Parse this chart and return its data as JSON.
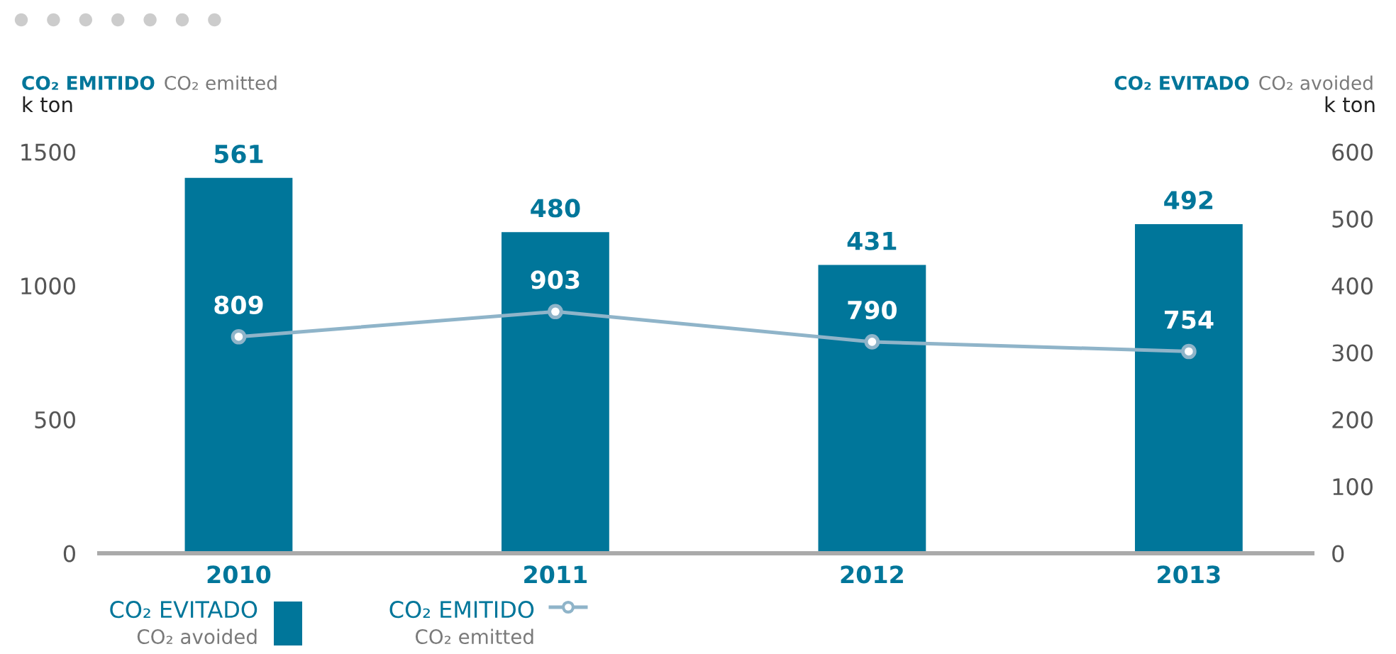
{
  "chart_data": {
    "type": "bar",
    "ylabel": "CO₂ EMITIDO\nCO₂ emitted\nk ton",
    "y2label": "CO₂ EVITADO\nCO₂ avoided\nk ton",
    "categories": [
      "2010",
      "2011",
      "2012",
      "2013"
    ],
    "series": [
      {
        "name": "CO₂ EVITADO\nCO₂ avoided",
        "axis": "y2",
        "color": "#00769a",
        "values": [
          561,
          480,
          431,
          492
        ]
      },
      {
        "name": "CO₂ EMITIDO\nCO₂ emitted",
        "type": "line",
        "color": "#8fb4c9",
        "marker": "circle",
        "values": [
          809,
          903,
          790,
          754
        ]
      }
    ],
    "ylim": [
      0,
      1500
    ],
    "yticks": [
      0,
      500,
      1000,
      1500
    ],
    "y2lim": [
      0,
      600
    ],
    "y2ticks": [
      0,
      100,
      200,
      300,
      400,
      500,
      600
    ],
    "data_labels": true,
    "legend": "bottom left"
  }
}
